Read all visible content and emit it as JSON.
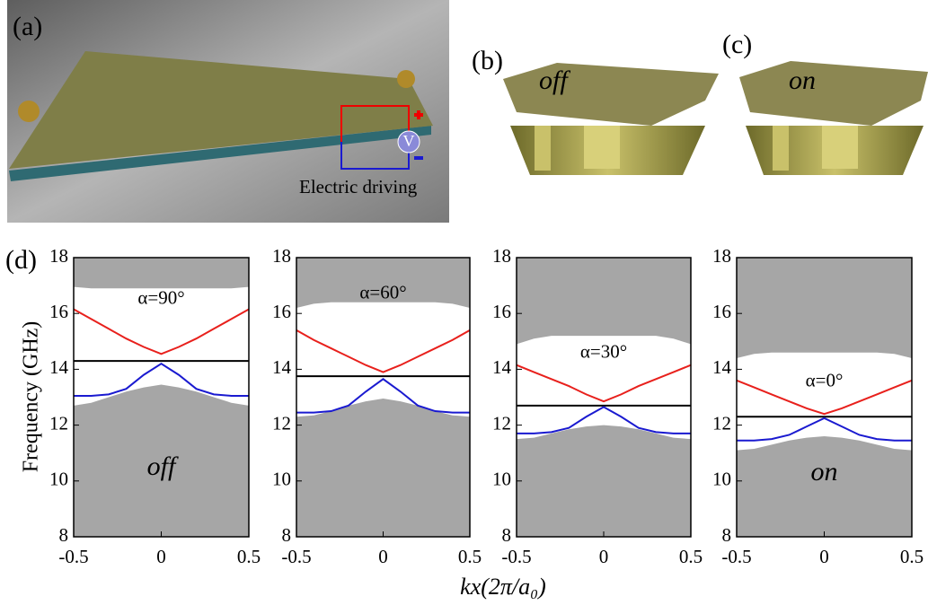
{
  "illustrations": {
    "a": {
      "label": "(a)",
      "meter": "V",
      "circuit_label": "Electric driving"
    },
    "b": {
      "label": "(b)",
      "state": "off"
    },
    "c": {
      "label": "(c)",
      "state": "on"
    }
  },
  "figure": {
    "label": "(d)",
    "y_label": "Frequency (GHz)",
    "x_label": "kx(2π/a₀)"
  },
  "chart_data": [
    {
      "type": "line",
      "title": "α=90°",
      "annotation": "off",
      "x": [
        -0.5,
        -0.4,
        -0.3,
        -0.2,
        -0.1,
        0,
        0.1,
        0.2,
        0.3,
        0.4,
        0.5
      ],
      "xlim": [
        -0.5,
        0.5
      ],
      "xticks": [
        -0.5,
        0,
        0.5
      ],
      "ylim": [
        8,
        18
      ],
      "yticks": [
        8,
        10,
        12,
        14,
        16,
        18
      ],
      "bands": [
        {
          "side": "upper",
          "color": "#a6a6a6",
          "values": [
            16.95,
            16.9,
            16.9,
            16.9,
            16.9,
            16.9,
            16.9,
            16.9,
            16.9,
            16.9,
            16.95
          ]
        },
        {
          "side": "lower",
          "color": "#a6a6a6",
          "values": [
            12.7,
            12.8,
            13.0,
            13.2,
            13.35,
            13.45,
            13.35,
            13.2,
            13.0,
            12.8,
            12.7
          ]
        }
      ],
      "series": [
        {
          "color": "#e8201c",
          "values": [
            16.15,
            15.8,
            15.45,
            15.1,
            14.8,
            14.55,
            14.8,
            15.1,
            15.45,
            15.8,
            16.15
          ]
        },
        {
          "color": "#000000",
          "values": [
            14.3,
            14.3,
            14.3,
            14.3,
            14.3,
            14.3,
            14.3,
            14.3,
            14.3,
            14.3,
            14.3
          ]
        },
        {
          "color": "#1a1ad0",
          "values": [
            13.05,
            13.05,
            13.1,
            13.3,
            13.8,
            14.2,
            13.8,
            13.3,
            13.1,
            13.05,
            13.05
          ]
        }
      ]
    },
    {
      "type": "line",
      "title": "α=60°",
      "x": [
        -0.5,
        -0.4,
        -0.3,
        -0.2,
        -0.1,
        0,
        0.1,
        0.2,
        0.3,
        0.4,
        0.5
      ],
      "xlim": [
        -0.5,
        0.5
      ],
      "xticks": [
        -0.5,
        0,
        0.5
      ],
      "ylim": [
        8,
        18
      ],
      "yticks": [
        8,
        10,
        12,
        14,
        16,
        18
      ],
      "bands": [
        {
          "side": "upper",
          "color": "#a6a6a6",
          "values": [
            16.2,
            16.35,
            16.4,
            16.4,
            16.4,
            16.4,
            16.4,
            16.4,
            16.4,
            16.35,
            16.2
          ]
        },
        {
          "side": "lower",
          "color": "#a6a6a6",
          "values": [
            12.3,
            12.35,
            12.5,
            12.7,
            12.85,
            12.95,
            12.85,
            12.7,
            12.5,
            12.35,
            12.3
          ]
        }
      ],
      "series": [
        {
          "color": "#e8201c",
          "values": [
            15.4,
            15.05,
            14.75,
            14.45,
            14.15,
            13.9,
            14.15,
            14.45,
            14.75,
            15.05,
            15.4
          ]
        },
        {
          "color": "#000000",
          "values": [
            13.75,
            13.75,
            13.75,
            13.75,
            13.75,
            13.75,
            13.75,
            13.75,
            13.75,
            13.75,
            13.75
          ]
        },
        {
          "color": "#1a1ad0",
          "values": [
            12.45,
            12.45,
            12.5,
            12.7,
            13.2,
            13.65,
            13.2,
            12.7,
            12.5,
            12.45,
            12.45
          ]
        }
      ]
    },
    {
      "type": "line",
      "title": "α=30°",
      "x": [
        -0.5,
        -0.4,
        -0.3,
        -0.2,
        -0.1,
        0,
        0.1,
        0.2,
        0.3,
        0.4,
        0.5
      ],
      "xlim": [
        -0.5,
        0.5
      ],
      "xticks": [
        -0.5,
        0,
        0.5
      ],
      "ylim": [
        8,
        18
      ],
      "yticks": [
        8,
        10,
        12,
        14,
        16,
        18
      ],
      "bands": [
        {
          "side": "upper",
          "color": "#a6a6a6",
          "values": [
            14.9,
            15.1,
            15.2,
            15.2,
            15.2,
            15.2,
            15.2,
            15.2,
            15.2,
            15.1,
            14.9
          ]
        },
        {
          "side": "lower",
          "color": "#a6a6a6",
          "values": [
            11.5,
            11.55,
            11.7,
            11.85,
            11.95,
            12.0,
            11.95,
            11.85,
            11.7,
            11.55,
            11.5
          ]
        }
      ],
      "series": [
        {
          "color": "#e8201c",
          "values": [
            14.15,
            13.9,
            13.65,
            13.4,
            13.1,
            12.85,
            13.1,
            13.4,
            13.65,
            13.9,
            14.15
          ]
        },
        {
          "color": "#000000",
          "values": [
            12.7,
            12.7,
            12.7,
            12.7,
            12.7,
            12.7,
            12.7,
            12.7,
            12.7,
            12.7,
            12.7
          ]
        },
        {
          "color": "#1a1ad0",
          "values": [
            11.7,
            11.7,
            11.75,
            11.9,
            12.3,
            12.65,
            12.3,
            11.9,
            11.75,
            11.7,
            11.7
          ]
        }
      ]
    },
    {
      "type": "line",
      "title": "α=0°",
      "annotation": "on",
      "x": [
        -0.5,
        -0.4,
        -0.3,
        -0.2,
        -0.1,
        0,
        0.1,
        0.2,
        0.3,
        0.4,
        0.5
      ],
      "xlim": [
        -0.5,
        0.5
      ],
      "xticks": [
        -0.5,
        0,
        0.5
      ],
      "ylim": [
        8,
        18
      ],
      "yticks": [
        8,
        10,
        12,
        14,
        16,
        18
      ],
      "bands": [
        {
          "side": "upper",
          "color": "#a6a6a6",
          "values": [
            14.4,
            14.55,
            14.6,
            14.6,
            14.6,
            14.6,
            14.6,
            14.6,
            14.6,
            14.55,
            14.4
          ]
        },
        {
          "side": "lower",
          "color": "#a6a6a6",
          "values": [
            11.1,
            11.15,
            11.3,
            11.45,
            11.55,
            11.6,
            11.55,
            11.45,
            11.3,
            11.15,
            11.1
          ]
        }
      ],
      "series": [
        {
          "color": "#e8201c",
          "values": [
            13.6,
            13.35,
            13.1,
            12.85,
            12.6,
            12.4,
            12.6,
            12.85,
            13.1,
            13.35,
            13.6
          ]
        },
        {
          "color": "#000000",
          "values": [
            12.3,
            12.3,
            12.3,
            12.3,
            12.3,
            12.3,
            12.3,
            12.3,
            12.3,
            12.3,
            12.3
          ]
        },
        {
          "color": "#1a1ad0",
          "values": [
            11.45,
            11.45,
            11.5,
            11.65,
            11.95,
            12.25,
            11.95,
            11.65,
            11.5,
            11.45,
            11.45
          ]
        }
      ]
    }
  ]
}
